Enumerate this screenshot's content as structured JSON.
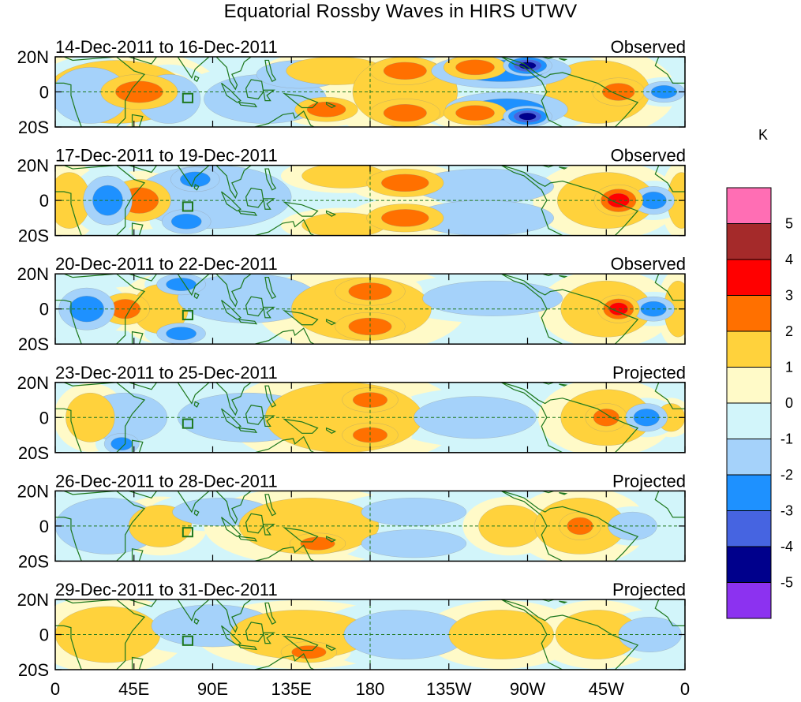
{
  "title": "Equatorial Rossby Waves in HIRS UTWV",
  "lat_ticks": [
    "20N",
    "0",
    "20S"
  ],
  "lon_ticks": [
    "0",
    "45E",
    "90E",
    "135E",
    "180",
    "135W",
    "90W",
    "45W",
    "0"
  ],
  "panels": [
    {
      "date_range": "14-Dec-2011 to 16-Dec-2011",
      "status": "Observed"
    },
    {
      "date_range": "17-Dec-2011 to 19-Dec-2011",
      "status": "Observed"
    },
    {
      "date_range": "20-Dec-2011 to 22-Dec-2011",
      "status": "Observed"
    },
    {
      "date_range": "23-Dec-2011 to 25-Dec-2011",
      "status": "Projected"
    },
    {
      "date_range": "26-Dec-2011 to 28-Dec-2011",
      "status": "Projected"
    },
    {
      "date_range": "29-Dec-2011 to 31-Dec-2011",
      "status": "Projected"
    }
  ],
  "colorbar": {
    "unit": "K",
    "labels": [
      "5",
      "4",
      "3",
      "2",
      "1",
      "0",
      "-1",
      "-2",
      "-3",
      "-4",
      "-5"
    ],
    "colors": [
      "#ff6eb4",
      "#a52a2a",
      "#ff0000",
      "#ff7000",
      "#ffd23c",
      "#fffac8",
      "#d2f5fa",
      "#a5d2fa",
      "#1e91ff",
      "#4664e1",
      "#00008c",
      "#8c32f0"
    ]
  },
  "colors": {
    "coast": "#1e781e",
    "grid": "#1e781e"
  },
  "anomalies": [
    [
      {
        "lon": 48,
        "lat": 0,
        "rx": 22,
        "ry": 10,
        "v": 2
      },
      {
        "lon": 35,
        "lat": 0,
        "rx": 40,
        "ry": 18,
        "v": 1
      },
      {
        "lon": 20,
        "lat": -2,
        "rx": 22,
        "ry": 16,
        "v": -1
      },
      {
        "lon": 65,
        "lat": -4,
        "rx": 18,
        "ry": 14,
        "v": -1
      },
      {
        "lon": 120,
        "lat": -4,
        "rx": 35,
        "ry": 14,
        "v": -1
      },
      {
        "lon": 140,
        "lat": 10,
        "rx": 25,
        "ry": 8,
        "v": -1
      },
      {
        "lon": 155,
        "lat": -10,
        "rx": 18,
        "ry": 7,
        "v": 2
      },
      {
        "lon": 160,
        "lat": 12,
        "rx": 28,
        "ry": 8,
        "v": 1
      },
      {
        "lon": 200,
        "lat": 12,
        "rx": 20,
        "ry": 8,
        "v": 2
      },
      {
        "lon": 200,
        "lat": -12,
        "rx": 20,
        "ry": 8,
        "v": 2
      },
      {
        "lon": 200,
        "lat": 0,
        "rx": 30,
        "ry": 20,
        "v": 1
      },
      {
        "lon": 255,
        "lat": 12,
        "rx": 40,
        "ry": 10,
        "v": -2
      },
      {
        "lon": 270,
        "lat": 15,
        "rx": 14,
        "ry": 6,
        "v": -4
      },
      {
        "lon": 270,
        "lat": -14,
        "rx": 14,
        "ry": 6,
        "v": -4
      },
      {
        "lon": 258,
        "lat": -10,
        "rx": 35,
        "ry": 10,
        "v": -2
      },
      {
        "lon": 240,
        "lat": 14,
        "rx": 18,
        "ry": 7,
        "v": 2
      },
      {
        "lon": 240,
        "lat": -12,
        "rx": 18,
        "ry": 7,
        "v": 2
      },
      {
        "lon": 322,
        "lat": 0,
        "rx": 15,
        "ry": 8,
        "v": 2
      },
      {
        "lon": 310,
        "lat": 0,
        "rx": 30,
        "ry": 18,
        "v": 1
      },
      {
        "lon": 348,
        "lat": 0,
        "rx": 12,
        "ry": 6,
        "v": -2
      }
    ],
    [
      {
        "lon": 48,
        "lat": 0,
        "rx": 18,
        "ry": 12,
        "v": 2
      },
      {
        "lon": 30,
        "lat": 0,
        "rx": 14,
        "ry": 14,
        "v": -2
      },
      {
        "lon": 8,
        "lat": 0,
        "rx": 12,
        "ry": 16,
        "v": 1
      },
      {
        "lon": 90,
        "lat": 2,
        "rx": 45,
        "ry": 18,
        "v": -1
      },
      {
        "lon": 75,
        "lat": -12,
        "rx": 14,
        "ry": 7,
        "v": -2
      },
      {
        "lon": 80,
        "lat": 12,
        "rx": 14,
        "ry": 7,
        "v": -2
      },
      {
        "lon": 165,
        "lat": 14,
        "rx": 24,
        "ry": 7,
        "v": 1
      },
      {
        "lon": 165,
        "lat": -14,
        "rx": 24,
        "ry": 7,
        "v": 1
      },
      {
        "lon": 200,
        "lat": 10,
        "rx": 22,
        "ry": 8,
        "v": 2
      },
      {
        "lon": 200,
        "lat": -10,
        "rx": 22,
        "ry": 8,
        "v": 2
      },
      {
        "lon": 245,
        "lat": 8,
        "rx": 40,
        "ry": 10,
        "v": -1
      },
      {
        "lon": 245,
        "lat": -10,
        "rx": 40,
        "ry": 10,
        "v": -1
      },
      {
        "lon": 322,
        "lat": 0,
        "rx": 14,
        "ry": 9,
        "v": 3
      },
      {
        "lon": 315,
        "lat": 0,
        "rx": 28,
        "ry": 16,
        "v": 1
      },
      {
        "lon": 342,
        "lat": 0,
        "rx": 12,
        "ry": 8,
        "v": -2
      },
      {
        "lon": 358,
        "lat": 0,
        "rx": 8,
        "ry": 16,
        "v": 1
      }
    ],
    [
      {
        "lon": 40,
        "lat": 0,
        "rx": 14,
        "ry": 9,
        "v": 2
      },
      {
        "lon": 18,
        "lat": 0,
        "rx": 16,
        "ry": 12,
        "v": -2
      },
      {
        "lon": 60,
        "lat": 0,
        "rx": 16,
        "ry": 14,
        "v": 1
      },
      {
        "lon": 72,
        "lat": 14,
        "rx": 14,
        "ry": 6,
        "v": -2
      },
      {
        "lon": 72,
        "lat": -14,
        "rx": 14,
        "ry": 6,
        "v": -2
      },
      {
        "lon": 110,
        "lat": 6,
        "rx": 40,
        "ry": 14,
        "v": -1
      },
      {
        "lon": 180,
        "lat": 10,
        "rx": 20,
        "ry": 8,
        "v": 2
      },
      {
        "lon": 180,
        "lat": -10,
        "rx": 20,
        "ry": 8,
        "v": 2
      },
      {
        "lon": 175,
        "lat": 0,
        "rx": 40,
        "ry": 18,
        "v": 1
      },
      {
        "lon": 250,
        "lat": 6,
        "rx": 40,
        "ry": 10,
        "v": -1
      },
      {
        "lon": 322,
        "lat": 0,
        "rx": 12,
        "ry": 8,
        "v": 3
      },
      {
        "lon": 315,
        "lat": 0,
        "rx": 26,
        "ry": 16,
        "v": 1
      },
      {
        "lon": 342,
        "lat": 0,
        "rx": 12,
        "ry": 7,
        "v": -2
      },
      {
        "lon": 356,
        "lat": 0,
        "rx": 8,
        "ry": 16,
        "v": 1
      }
    ],
    [
      {
        "lon": 40,
        "lat": 0,
        "rx": 24,
        "ry": 14,
        "v": -1
      },
      {
        "lon": 38,
        "lat": -15,
        "rx": 10,
        "ry": 6,
        "v": -2
      },
      {
        "lon": 20,
        "lat": 0,
        "rx": 14,
        "ry": 14,
        "v": 1
      },
      {
        "lon": 110,
        "lat": 0,
        "rx": 40,
        "ry": 14,
        "v": -1
      },
      {
        "lon": 165,
        "lat": 0,
        "rx": 45,
        "ry": 20,
        "v": 1
      },
      {
        "lon": 180,
        "lat": 10,
        "rx": 16,
        "ry": 7,
        "v": 2
      },
      {
        "lon": 180,
        "lat": -10,
        "rx": 16,
        "ry": 7,
        "v": 2
      },
      {
        "lon": 240,
        "lat": 0,
        "rx": 35,
        "ry": 12,
        "v": -1
      },
      {
        "lon": 315,
        "lat": 0,
        "rx": 12,
        "ry": 8,
        "v": 2
      },
      {
        "lon": 315,
        "lat": 0,
        "rx": 26,
        "ry": 16,
        "v": 1
      },
      {
        "lon": 338,
        "lat": 0,
        "rx": 12,
        "ry": 8,
        "v": -2
      },
      {
        "lon": 352,
        "lat": 0,
        "rx": 8,
        "ry": 8,
        "v": 1
      }
    ],
    [
      {
        "lon": 30,
        "lat": 0,
        "rx": 30,
        "ry": 16,
        "v": -1
      },
      {
        "lon": 60,
        "lat": 0,
        "rx": 18,
        "ry": 12,
        "v": 1
      },
      {
        "lon": 95,
        "lat": 8,
        "rx": 28,
        "ry": 8,
        "v": -1
      },
      {
        "lon": 145,
        "lat": 0,
        "rx": 40,
        "ry": 16,
        "v": 1
      },
      {
        "lon": 150,
        "lat": -10,
        "rx": 16,
        "ry": 6,
        "v": 2
      },
      {
        "lon": 205,
        "lat": 8,
        "rx": 30,
        "ry": 8,
        "v": -1
      },
      {
        "lon": 205,
        "lat": -10,
        "rx": 30,
        "ry": 8,
        "v": -1
      },
      {
        "lon": 260,
        "lat": 0,
        "rx": 18,
        "ry": 12,
        "v": 1
      },
      {
        "lon": 300,
        "lat": 0,
        "rx": 12,
        "ry": 8,
        "v": 2
      },
      {
        "lon": 300,
        "lat": 0,
        "rx": 26,
        "ry": 16,
        "v": 1
      },
      {
        "lon": 330,
        "lat": 0,
        "rx": 14,
        "ry": 8,
        "v": -1
      }
    ],
    [
      {
        "lon": 30,
        "lat": 0,
        "rx": 30,
        "ry": 16,
        "v": 1
      },
      {
        "lon": 90,
        "lat": 5,
        "rx": 35,
        "ry": 12,
        "v": -1
      },
      {
        "lon": 140,
        "lat": 0,
        "rx": 40,
        "ry": 14,
        "v": 1
      },
      {
        "lon": 145,
        "lat": -10,
        "rx": 16,
        "ry": 6,
        "v": 2
      },
      {
        "lon": 200,
        "lat": 0,
        "rx": 35,
        "ry": 14,
        "v": -1
      },
      {
        "lon": 255,
        "lat": 0,
        "rx": 30,
        "ry": 14,
        "v": 1
      },
      {
        "lon": 310,
        "lat": 0,
        "rx": 24,
        "ry": 14,
        "v": 1
      },
      {
        "lon": 340,
        "lat": 0,
        "rx": 18,
        "ry": 10,
        "v": -1
      }
    ]
  ]
}
